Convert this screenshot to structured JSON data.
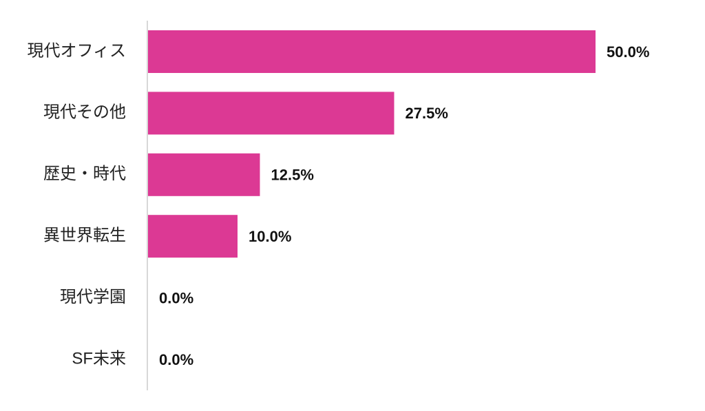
{
  "chart_data": {
    "type": "bar",
    "orientation": "horizontal",
    "categories": [
      "現代オフィス",
      "現代その他",
      "歴史・時代",
      "異世界転生",
      "現代学園",
      "SF未来"
    ],
    "values": [
      50,
      27.5,
      12.5,
      10,
      0,
      0
    ],
    "value_labels": [
      "50.0%",
      "27.5%",
      "12.5%",
      "10.0%",
      "0.0%",
      "0.0%"
    ],
    "color": "#dc3994"
  }
}
